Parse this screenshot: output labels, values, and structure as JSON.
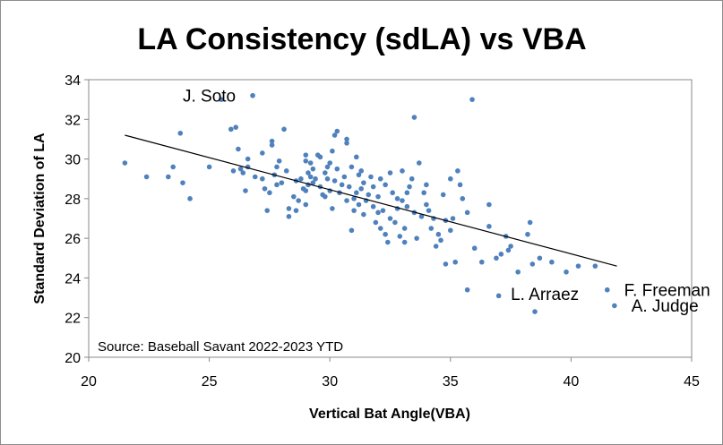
{
  "chart_data": {
    "type": "scatter",
    "title": "LA Consistency (sdLA) vs VBA",
    "xlabel": "Vertical Bat Angle(VBA)",
    "ylabel": "Standard Deviation of LA",
    "xlim": [
      20,
      45
    ],
    "ylim": [
      20,
      34
    ],
    "x_ticks": [
      "20",
      "25",
      "30",
      "35",
      "40",
      "45"
    ],
    "y_ticks": [
      "20",
      "22",
      "24",
      "26",
      "28",
      "30",
      "32",
      "34"
    ],
    "source": "Source: Baseball Savant 2022-2023 YTD",
    "marker_color": "#4f81bd",
    "trendline": {
      "x": [
        21.5,
        41.9
      ],
      "y": [
        31.2,
        24.6
      ],
      "color": "#000000"
    },
    "annotations": [
      {
        "text": "J. Soto",
        "x": 23.9,
        "y": 32.9
      },
      {
        "text": "L. Arraez",
        "x": 37.5,
        "y": 22.9
      },
      {
        "text": "F. Freeman",
        "x": 42.2,
        "y": 23.1
      },
      {
        "text": "A. Judge",
        "x": 42.5,
        "y": 22.3
      }
    ],
    "points": [
      [
        21.5,
        29.8
      ],
      [
        22.4,
        29.1
      ],
      [
        23.3,
        29.1
      ],
      [
        23.5,
        29.6
      ],
      [
        23.8,
        31.3
      ],
      [
        23.9,
        28.8
      ],
      [
        24.2,
        28.0
      ],
      [
        25.0,
        29.6
      ],
      [
        25.5,
        33.0
      ],
      [
        25.9,
        31.5
      ],
      [
        26.0,
        29.4
      ],
      [
        26.1,
        31.6
      ],
      [
        26.2,
        30.5
      ],
      [
        26.3,
        29.5
      ],
      [
        26.4,
        29.3
      ],
      [
        26.5,
        28.4
      ],
      [
        26.6,
        30.0
      ],
      [
        26.6,
        29.6
      ],
      [
        26.8,
        33.2
      ],
      [
        26.9,
        29.1
      ],
      [
        27.2,
        30.3
      ],
      [
        27.2,
        29.0
      ],
      [
        27.3,
        28.5
      ],
      [
        27.4,
        27.4
      ],
      [
        27.5,
        28.3
      ],
      [
        27.6,
        30.7
      ],
      [
        27.6,
        30.9
      ],
      [
        27.7,
        29.2
      ],
      [
        27.8,
        29.6
      ],
      [
        27.8,
        28.7
      ],
      [
        27.9,
        29.9
      ],
      [
        28.0,
        28.8
      ],
      [
        28.1,
        31.5
      ],
      [
        28.2,
        29.4
      ],
      [
        28.3,
        27.5
      ],
      [
        28.5,
        28.1
      ],
      [
        28.6,
        28.9
      ],
      [
        28.6,
        27.4
      ],
      [
        28.7,
        27.9
      ],
      [
        28.8,
        29.0
      ],
      [
        28.9,
        28.5
      ],
      [
        29.0,
        27.7
      ],
      [
        29.0,
        29.9
      ],
      [
        29.0,
        30.2
      ],
      [
        29.0,
        28.4
      ],
      [
        29.1,
        28.7
      ],
      [
        29.1,
        29.3
      ],
      [
        29.2,
        29.8
      ],
      [
        29.2,
        29.1
      ],
      [
        29.3,
        28.8
      ],
      [
        29.3,
        29.5
      ],
      [
        29.4,
        29.0
      ],
      [
        29.5,
        30.2
      ],
      [
        29.6,
        28.6
      ],
      [
        29.6,
        30.1
      ],
      [
        29.7,
        28.2
      ],
      [
        29.8,
        29.3
      ],
      [
        29.8,
        28.1
      ],
      [
        29.9,
        29.0
      ],
      [
        29.9,
        29.6
      ],
      [
        30.0,
        28.4
      ],
      [
        30.0,
        29.8
      ],
      [
        30.1,
        27.5
      ],
      [
        30.1,
        30.4
      ],
      [
        30.2,
        31.2
      ],
      [
        30.2,
        28.9
      ],
      [
        30.3,
        31.4
      ],
      [
        30.3,
        29.5
      ],
      [
        30.4,
        28.3
      ],
      [
        30.5,
        28.7
      ],
      [
        30.6,
        29.1
      ],
      [
        30.7,
        27.9
      ],
      [
        30.7,
        30.8
      ],
      [
        30.7,
        31.0
      ],
      [
        30.8,
        28.6
      ],
      [
        30.9,
        29.6
      ],
      [
        31.0,
        28.0
      ],
      [
        31.0,
        27.4
      ],
      [
        31.1,
        30.1
      ],
      [
        31.1,
        28.3
      ],
      [
        31.2,
        29.2
      ],
      [
        31.2,
        27.7
      ],
      [
        31.3,
        28.5
      ],
      [
        31.3,
        29.4
      ],
      [
        31.4,
        28.8
      ],
      [
        31.4,
        27.2
      ],
      [
        31.5,
        27.9
      ],
      [
        31.6,
        28.2
      ],
      [
        31.7,
        29.1
      ],
      [
        31.8,
        27.6
      ],
      [
        31.8,
        28.6
      ],
      [
        31.9,
        26.8
      ],
      [
        32.0,
        28.1
      ],
      [
        32.0,
        27.3
      ],
      [
        32.1,
        29.0
      ],
      [
        32.1,
        26.5
      ],
      [
        32.2,
        27.4
      ],
      [
        32.3,
        26.2
      ],
      [
        32.3,
        28.7
      ],
      [
        32.4,
        25.8
      ],
      [
        32.5,
        27.0
      ],
      [
        32.6,
        28.3
      ],
      [
        32.7,
        26.8
      ],
      [
        32.8,
        28.0
      ],
      [
        32.8,
        27.5
      ],
      [
        32.9,
        26.1
      ],
      [
        33.0,
        27.9
      ],
      [
        33.0,
        29.4
      ],
      [
        33.1,
        26.5
      ],
      [
        33.1,
        25.8
      ],
      [
        33.2,
        28.3
      ],
      [
        33.2,
        27.6
      ],
      [
        33.3,
        28.6
      ],
      [
        33.4,
        29.0
      ],
      [
        33.5,
        32.1
      ],
      [
        33.5,
        27.3
      ],
      [
        33.7,
        29.8
      ],
      [
        33.8,
        27.1
      ],
      [
        33.9,
        28.3
      ],
      [
        34.0,
        28.7
      ],
      [
        34.0,
        27.7
      ],
      [
        34.1,
        27.4
      ],
      [
        34.2,
        26.5
      ],
      [
        34.3,
        27.0
      ],
      [
        34.4,
        25.6
      ],
      [
        34.5,
        26.2
      ],
      [
        34.6,
        25.9
      ],
      [
        34.7,
        28.2
      ],
      [
        34.8,
        26.9
      ],
      [
        34.8,
        24.7
      ],
      [
        35.0,
        26.4
      ],
      [
        35.0,
        29.0
      ],
      [
        35.1,
        27.0
      ],
      [
        35.2,
        24.8
      ],
      [
        35.3,
        29.4
      ],
      [
        35.4,
        28.7
      ],
      [
        35.5,
        28.0
      ],
      [
        35.7,
        27.3
      ],
      [
        35.7,
        23.4
      ],
      [
        35.9,
        33.0
      ],
      [
        36.0,
        25.5
      ],
      [
        36.3,
        24.8
      ],
      [
        36.6,
        27.7
      ],
      [
        36.9,
        25.0
      ],
      [
        37.1,
        25.2
      ],
      [
        37.3,
        26.1
      ],
      [
        37.4,
        25.4
      ],
      [
        37.5,
        25.6
      ],
      [
        37.8,
        24.3
      ],
      [
        38.2,
        26.2
      ],
      [
        38.3,
        26.8
      ],
      [
        38.4,
        24.7
      ],
      [
        38.7,
        25.0
      ],
      [
        39.2,
        24.8
      ],
      [
        39.8,
        24.3
      ],
      [
        40.3,
        24.6
      ],
      [
        41.0,
        24.6
      ],
      [
        37.0,
        23.1
      ],
      [
        41.5,
        23.4
      ],
      [
        41.8,
        22.6
      ],
      [
        38.5,
        22.3
      ],
      [
        36.6,
        26.6
      ],
      [
        30.9,
        26.4
      ],
      [
        33.6,
        26.0
      ],
      [
        32.5,
        29.3
      ],
      [
        28.3,
        27.1
      ]
    ]
  }
}
